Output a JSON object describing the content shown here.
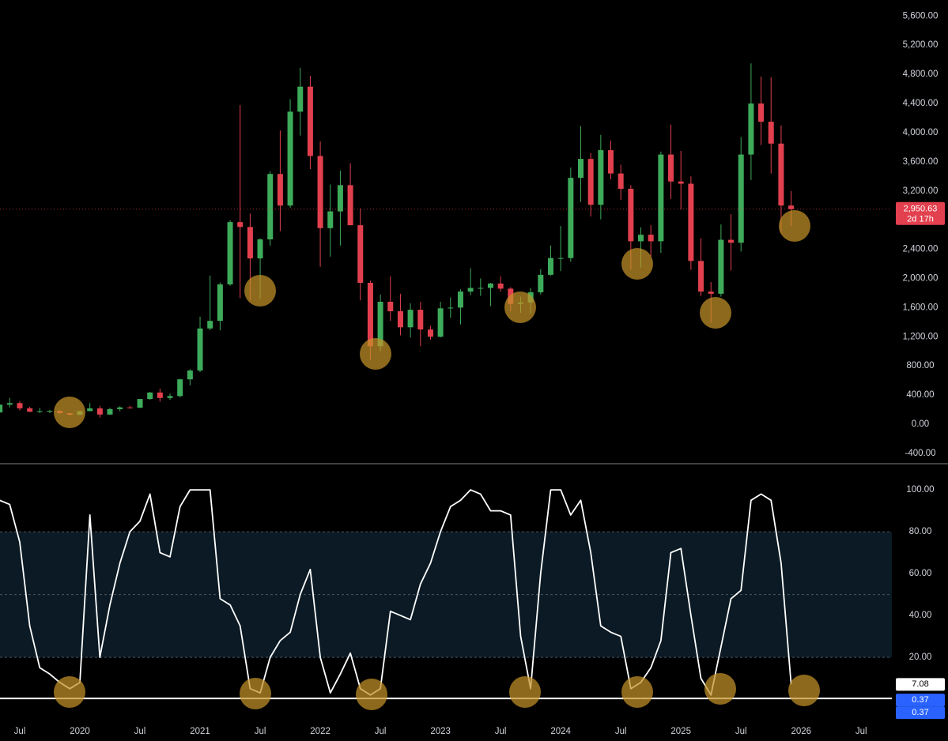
{
  "chart_data": [
    {
      "type": "candlestick",
      "categories": [
        "2019-05",
        "2019-06",
        "2019-07",
        "2019-08",
        "2019-09",
        "2019-10",
        "2019-11",
        "2019-12",
        "2020-01",
        "2020-02",
        "2020-03",
        "2020-04",
        "2020-05",
        "2020-06",
        "2020-07",
        "2020-08",
        "2020-09",
        "2020-10",
        "2020-11",
        "2020-12",
        "2021-01",
        "2021-02",
        "2021-03",
        "2021-04",
        "2021-05",
        "2021-06",
        "2021-07",
        "2021-08",
        "2021-09",
        "2021-10",
        "2021-11",
        "2021-12",
        "2022-01",
        "2022-02",
        "2022-03",
        "2022-04",
        "2022-05",
        "2022-06",
        "2022-07",
        "2022-08",
        "2022-09",
        "2022-10",
        "2022-11",
        "2022-12",
        "2023-01",
        "2023-02",
        "2023-03",
        "2023-04",
        "2023-05",
        "2023-06",
        "2023-07",
        "2023-08",
        "2023-09",
        "2023-10",
        "2023-11",
        "2023-12",
        "2024-01",
        "2024-02",
        "2024-03",
        "2024-04",
        "2024-05",
        "2024-06",
        "2024-07",
        "2024-08",
        "2024-09",
        "2024-10",
        "2024-11",
        "2024-12",
        "2025-01",
        "2025-02",
        "2025-03",
        "2025-04",
        "2025-05",
        "2025-06",
        "2025-07",
        "2025-08",
        "2025-09",
        "2025-10",
        "2025-11",
        "2025-12"
      ],
      "open": [
        162,
        268,
        290,
        218,
        172,
        180,
        183,
        152,
        130,
        180,
        218,
        133,
        207,
        231,
        226,
        346,
        435,
        360,
        386,
        616,
        737,
        1314,
        1418,
        1918,
        2773,
        2706,
        2275,
        2536,
        3433,
        3000,
        4288,
        4631,
        3680,
        2690,
        2920,
        3280,
        2730,
        1940,
        1070,
        1680,
        1550,
        1330,
        1570,
        1300,
        1200,
        1590,
        1600,
        1820,
        1870,
        1870,
        1930,
        1860,
        1650,
        1670,
        1810,
        2050,
        2280,
        2280,
        3380,
        3640,
        3010,
        3760,
        3440,
        3230,
        2510,
        2600,
        2510,
        3700,
        3330,
        3300,
        2240,
        1820,
        1790,
        2530,
        2490,
        3700,
        4400,
        4150,
        3850,
        3000
      ],
      "high": [
        280,
        361,
        318,
        239,
        224,
        197,
        194,
        153,
        183,
        289,
        253,
        227,
        247,
        253,
        348,
        445,
        488,
        420,
        623,
        755,
        1475,
        2040,
        1945,
        2797,
        4380,
        2890,
        2550,
        3470,
        4030,
        4460,
        4890,
        4780,
        3880,
        3290,
        3480,
        3580,
        2960,
        1970,
        1780,
        2030,
        1790,
        1660,
        1680,
        1350,
        1680,
        1740,
        1850,
        2140,
        2000,
        1940,
        2030,
        1880,
        1750,
        1870,
        2130,
        2450,
        2720,
        3520,
        4090,
        3720,
        3970,
        3890,
        3560,
        3280,
        2700,
        2730,
        3740,
        4110,
        3750,
        3400,
        2550,
        1950,
        2740,
        2880,
        3940,
        4950,
        4770,
        4760,
        4100,
        3200
      ],
      "low": [
        155,
        231,
        190,
        165,
        153,
        152,
        139,
        116,
        127,
        179,
        90,
        130,
        180,
        216,
        224,
        334,
        308,
        335,
        370,
        535,
        715,
        1290,
        1290,
        1900,
        1730,
        1700,
        1720,
        2450,
        2650,
        2970,
        3960,
        3500,
        2160,
        2300,
        2450,
        2780,
        1700,
        880,
        1000,
        1420,
        1220,
        1190,
        1070,
        1160,
        1190,
        1460,
        1370,
        1770,
        1760,
        1620,
        1820,
        1550,
        1530,
        1520,
        1780,
        2040,
        2100,
        2230,
        3050,
        2850,
        2810,
        3360,
        3080,
        2120,
        2150,
        2300,
        2350,
        3090,
        2950,
        2120,
        1760,
        1390,
        1750,
        2110,
        2370,
        3350,
        3830,
        3440,
        2620,
        2720
      ],
      "close": [
        268,
        290,
        218,
        172,
        180,
        183,
        152,
        130,
        180,
        218,
        133,
        207,
        231,
        226,
        346,
        435,
        360,
        386,
        616,
        737,
        1314,
        1418,
        1918,
        2773,
        2706,
        2275,
        2536,
        3433,
        3000,
        4288,
        4631,
        3680,
        2690,
        2920,
        3280,
        2730,
        1940,
        1070,
        1680,
        1550,
        1330,
        1570,
        1300,
        1200,
        1590,
        1600,
        1820,
        1870,
        1870,
        1930,
        1860,
        1650,
        1670,
        1810,
        2050,
        2280,
        2280,
        3380,
        3640,
        3010,
        3760,
        3440,
        3230,
        2510,
        2600,
        2510,
        3700,
        3330,
        3300,
        2240,
        1820,
        1790,
        2530,
        2490,
        3700,
        4400,
        4150,
        3850,
        3000,
        2950.63
      ],
      "colors": {
        "up": "#3dab5a",
        "down": "#e2404e"
      },
      "ylim": [
        -520,
        5820
      ],
      "yticks": [
        {
          "value": -400,
          "label": "-400.00"
        },
        {
          "value": 0,
          "label": "0.00"
        },
        {
          "value": 400,
          "label": "400.00"
        },
        {
          "value": 800,
          "label": "800.00"
        },
        {
          "value": 1200,
          "label": "1,200.00"
        },
        {
          "value": 1600,
          "label": "1,600.00"
        },
        {
          "value": 2000,
          "label": "2,000.00"
        },
        {
          "value": 2400,
          "label": "2,400.00"
        },
        {
          "value": 2800,
          "label": "2,800.00"
        },
        {
          "value": 3200,
          "label": "3,200.00"
        },
        {
          "value": 3600,
          "label": "3,600.00"
        },
        {
          "value": 4000,
          "label": "4,000.00"
        },
        {
          "value": 4400,
          "label": "4,400.00"
        },
        {
          "value": 4800,
          "label": "4,800.00"
        },
        {
          "value": 5200,
          "label": "5,200.00"
        },
        {
          "value": 5600,
          "label": "5,600.00"
        }
      ],
      "xticks": [
        {
          "value": "2019-07",
          "label": "Jul"
        },
        {
          "value": "2020-01",
          "label": "2020"
        },
        {
          "value": "2020-07",
          "label": "Jul"
        },
        {
          "value": "2021-01",
          "label": "2021"
        },
        {
          "value": "2021-07",
          "label": "Jul"
        },
        {
          "value": "2022-01",
          "label": "2022"
        },
        {
          "value": "2022-07",
          "label": "Jul"
        },
        {
          "value": "2023-01",
          "label": "2023"
        },
        {
          "value": "2023-07",
          "label": "Jul"
        },
        {
          "value": "2024-01",
          "label": "2024"
        },
        {
          "value": "2024-07",
          "label": "Jul"
        },
        {
          "value": "2025-01",
          "label": "2025"
        },
        {
          "value": "2025-07",
          "label": "Jul"
        },
        {
          "value": "2026-01",
          "label": "2026"
        },
        {
          "value": "2026-07",
          "label": "Jul"
        }
      ],
      "last_price": 2950.63,
      "last_price_label": "2,950.63",
      "countdown": "2d 17h"
    },
    {
      "type": "line",
      "values": [
        95,
        93,
        75,
        35,
        15,
        12,
        8,
        5,
        8,
        88,
        20,
        45,
        65,
        80,
        85,
        98,
        70,
        68,
        92,
        100,
        100,
        100,
        48,
        45,
        35,
        5,
        3,
        20,
        28,
        32,
        50,
        62,
        20,
        3,
        12,
        22,
        5,
        2,
        5,
        42,
        40,
        38,
        55,
        65,
        80,
        92,
        95,
        100,
        98,
        90,
        90,
        88,
        30,
        5,
        60,
        100,
        100,
        88,
        95,
        70,
        35,
        32,
        30,
        5,
        8,
        15,
        28,
        70,
        72,
        40,
        10,
        2,
        25,
        48,
        52,
        95,
        98,
        95,
        65,
        7.08
      ],
      "value_labels": [
        null,
        null,
        null,
        null,
        null,
        null,
        null,
        null,
        null,
        null,
        null,
        null,
        null,
        null,
        null,
        null,
        null,
        null,
        null,
        null,
        null,
        null,
        null,
        null,
        null,
        null,
        null,
        null,
        null,
        null,
        null,
        null,
        null,
        null,
        null,
        null,
        null,
        null,
        null,
        null,
        null,
        null,
        null,
        null,
        null,
        null,
        null,
        null,
        null,
        null,
        null,
        null,
        null,
        null,
        null,
        null,
        null,
        null,
        null,
        null,
        null,
        null,
        null,
        null,
        null,
        null,
        null,
        null,
        null,
        null,
        null,
        null,
        null,
        null,
        null,
        null,
        null,
        null,
        null,
        "7.08"
      ],
      "color": "#ffffff",
      "baseline": 0.37,
      "baseline_labels": [
        "0.37",
        "0.37"
      ],
      "band": [
        20,
        80
      ],
      "levels": [
        80,
        50,
        20
      ],
      "ylim": [
        -9.4,
        112.1
      ],
      "yticks": [
        {
          "value": 20,
          "label": "20.00"
        },
        {
          "value": 40,
          "label": "40.00"
        },
        {
          "value": 60,
          "label": "60.00"
        },
        {
          "value": 80,
          "label": "80.00"
        },
        {
          "value": 100,
          "label": "100.00"
        }
      ]
    }
  ]
}
